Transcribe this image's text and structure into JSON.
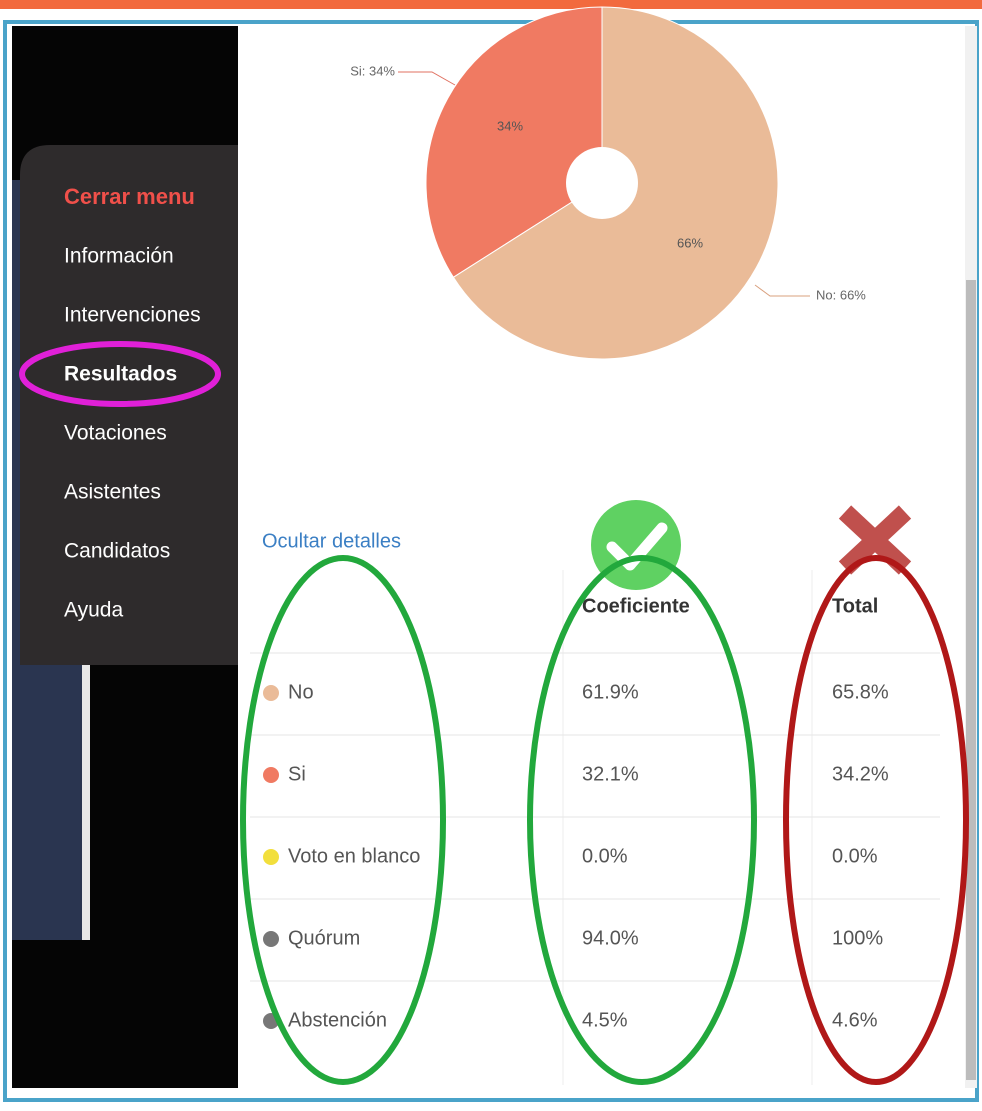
{
  "menu": {
    "close": "Cerrar menu",
    "items": [
      "Información",
      "Intervenciones",
      "Resultados",
      "Votaciones",
      "Asistentes",
      "Candidatos",
      "Ayuda"
    ]
  },
  "chart_data": {
    "type": "pie",
    "categories": [
      "Si",
      "No"
    ],
    "values": [
      34,
      66
    ],
    "value_labels": [
      "34%",
      "66%"
    ],
    "annotations": [
      "Si: 34%",
      "No: 66%"
    ],
    "colors": [
      "#f07a62",
      "#eabb98"
    ]
  },
  "details_link": "Ocultar detalles",
  "table": {
    "header": {
      "coeficiente": "Coeficiente",
      "total": "Total"
    },
    "rows": [
      [
        "No",
        "61.9%",
        "65.8%"
      ],
      [
        "Si",
        "32.1%",
        "34.2%"
      ],
      [
        "Voto en blanco",
        "0.0%",
        "0.0%"
      ],
      [
        "Quórum",
        "94.0%",
        "100%"
      ],
      [
        "Abstención",
        "4.5%",
        "4.6%"
      ]
    ],
    "dot_colors": [
      "#eabb98",
      "#f07a62",
      "#f2df3c",
      "#777777",
      "#777777"
    ]
  }
}
